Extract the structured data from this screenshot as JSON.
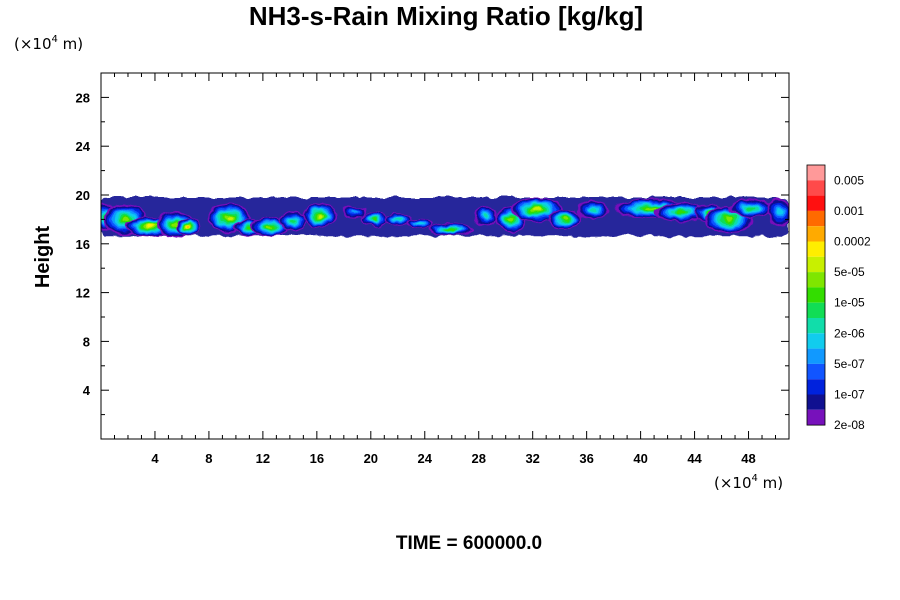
{
  "chart_data": {
    "type": "heatmap",
    "title": "NH3-s-Rain Mixing Ratio [kg/kg]",
    "ylabel": "Height",
    "xlabel": "",
    "x_unit_prefix": "(×10",
    "x_unit_exp": "4",
    "x_unit_suffix": " m)",
    "y_unit_prefix": "(×10",
    "y_unit_exp": "4",
    "y_unit_suffix": " m)",
    "xlim": [
      0,
      51
    ],
    "ylim": [
      0,
      30
    ],
    "x_ticks": [
      4,
      8,
      12,
      16,
      20,
      24,
      28,
      32,
      36,
      40,
      44,
      48
    ],
    "x_tick_labels": [
      "4",
      "8",
      "12",
      "16",
      "20",
      "24",
      "28",
      "32",
      "36",
      "40",
      "44",
      "48"
    ],
    "y_ticks": [
      4,
      8,
      12,
      16,
      20,
      24,
      28
    ],
    "y_tick_labels": [
      "4",
      "8",
      "12",
      "16",
      "20",
      "24",
      "28"
    ],
    "grid": false,
    "colorbar": {
      "labels": [
        "0.005",
        "0.001",
        "0.0002",
        "5e-05",
        "1e-05",
        "2e-06",
        "5e-07",
        "1e-07",
        "2e-08"
      ],
      "colors_top_to_bottom": [
        "#ff9999",
        "#ff4a4a",
        "#ff1010",
        "#ff6a00",
        "#ffaa00",
        "#ffee00",
        "#c8f000",
        "#7fe600",
        "#33dd00",
        "#11dd55",
        "#11ddaa",
        "#11ccee",
        "#1199ff",
        "#1155ff",
        "#0022dd",
        "#101090",
        "#7711bb"
      ]
    },
    "cloud_layer": {
      "height_range": [
        16.5,
        19.8
      ],
      "blobs": [
        {
          "x": 0.3,
          "y": 18.2,
          "w": 0.9,
          "h": 1.2,
          "l": 7
        },
        {
          "x": 1.8,
          "y": 18.0,
          "w": 1.6,
          "h": 1.3,
          "l": 9
        },
        {
          "x": 3.6,
          "y": 17.4,
          "w": 1.8,
          "h": 0.8,
          "l": 11
        },
        {
          "x": 5.5,
          "y": 17.6,
          "w": 1.4,
          "h": 1.1,
          "l": 9
        },
        {
          "x": 6.5,
          "y": 17.4,
          "w": 0.9,
          "h": 0.7,
          "l": 12
        },
        {
          "x": 9.5,
          "y": 18.1,
          "w": 1.6,
          "h": 1.2,
          "l": 10
        },
        {
          "x": 11.0,
          "y": 17.3,
          "w": 1.1,
          "h": 0.7,
          "l": 8
        },
        {
          "x": 12.5,
          "y": 17.4,
          "w": 1.4,
          "h": 0.8,
          "l": 9
        },
        {
          "x": 14.2,
          "y": 17.9,
          "w": 1.0,
          "h": 0.8,
          "l": 7
        },
        {
          "x": 16.2,
          "y": 18.3,
          "w": 1.3,
          "h": 1.0,
          "l": 10
        },
        {
          "x": 18.8,
          "y": 18.6,
          "w": 0.9,
          "h": 0.5,
          "l": 4
        },
        {
          "x": 20.3,
          "y": 18.0,
          "w": 0.9,
          "h": 0.6,
          "l": 8
        },
        {
          "x": 22.0,
          "y": 18.0,
          "w": 1.0,
          "h": 0.5,
          "l": 6
        },
        {
          "x": 23.6,
          "y": 17.7,
          "w": 1.0,
          "h": 0.4,
          "l": 5
        },
        {
          "x": 25.9,
          "y": 17.2,
          "w": 1.7,
          "h": 0.5,
          "l": 8
        },
        {
          "x": 28.5,
          "y": 18.3,
          "w": 0.9,
          "h": 0.8,
          "l": 6
        },
        {
          "x": 30.4,
          "y": 18.0,
          "w": 1.1,
          "h": 1.1,
          "l": 9
        },
        {
          "x": 32.3,
          "y": 18.8,
          "w": 1.9,
          "h": 1.0,
          "l": 10
        },
        {
          "x": 34.4,
          "y": 18.0,
          "w": 1.3,
          "h": 0.8,
          "l": 9
        },
        {
          "x": 36.5,
          "y": 18.8,
          "w": 1.2,
          "h": 0.8,
          "l": 6
        },
        {
          "x": 40.8,
          "y": 18.9,
          "w": 2.8,
          "h": 0.8,
          "l": 9
        },
        {
          "x": 43.0,
          "y": 18.6,
          "w": 2.0,
          "h": 0.8,
          "l": 8
        },
        {
          "x": 45.1,
          "y": 18.5,
          "w": 1.0,
          "h": 0.8,
          "l": 10
        },
        {
          "x": 46.5,
          "y": 18.0,
          "w": 1.8,
          "h": 1.1,
          "l": 9
        },
        {
          "x": 48.2,
          "y": 18.9,
          "w": 1.6,
          "h": 0.8,
          "l": 7
        },
        {
          "x": 50.3,
          "y": 18.6,
          "w": 0.9,
          "h": 1.2,
          "l": 5
        }
      ]
    }
  },
  "footer": {
    "time_label": "TIME = 600000.0"
  }
}
